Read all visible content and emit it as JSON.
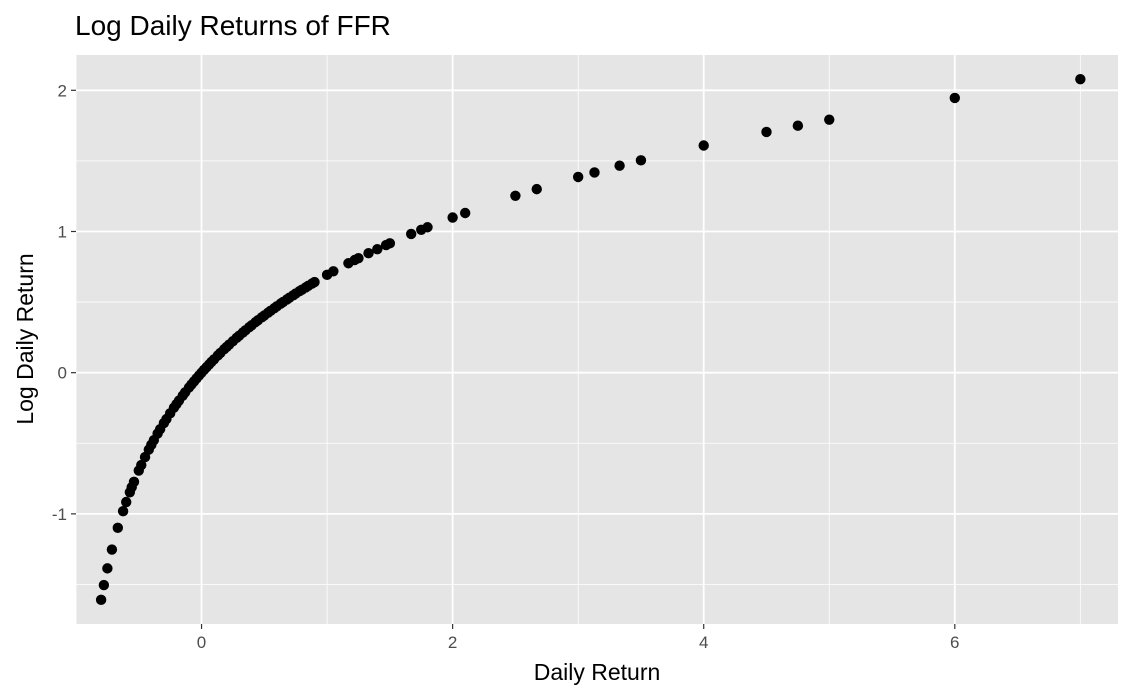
{
  "chart_data": {
    "type": "scatter",
    "title": "Log Daily Returns of FFR",
    "xlabel": "Daily Return",
    "ylabel": "Log Daily Return",
    "xlim": [
      -1.0,
      7.3
    ],
    "ylim": [
      -1.78,
      2.25
    ],
    "grid": true,
    "x_major_ticks": [
      0,
      2,
      4,
      6
    ],
    "x_minor_ticks": [
      -1,
      1,
      3,
      5,
      7
    ],
    "y_major_ticks": [
      -1,
      0,
      1,
      2
    ],
    "y_minor_ticks": [
      -1.5,
      -0.5,
      0.5,
      1.5
    ],
    "x_tick_labels": [
      "0",
      "2",
      "4",
      "6"
    ],
    "y_tick_labels": [
      "-1",
      "0",
      "1",
      "2"
    ],
    "series": [
      {
        "name": "log returns",
        "x": [
          -0.8,
          -0.778,
          -0.75,
          -0.714,
          -0.667,
          -0.625,
          -0.6,
          -0.571,
          -0.556,
          -0.538,
          -0.5,
          -0.48,
          -0.45,
          -0.42,
          -0.4,
          -0.38,
          -0.35,
          -0.33,
          -0.3,
          -0.28,
          -0.25,
          -0.22,
          -0.2,
          -0.18,
          -0.15,
          -0.13,
          -0.1,
          -0.08,
          -0.06,
          -0.04,
          -0.02,
          0,
          0.02,
          0.04,
          0.06,
          0.08,
          0.1,
          0.13,
          0.15,
          0.18,
          0.2,
          0.22,
          0.25,
          0.28,
          0.3,
          0.33,
          0.35,
          0.38,
          0.4,
          0.43,
          0.45,
          0.48,
          0.5,
          0.53,
          0.55,
          0.58,
          0.6,
          0.63,
          0.65,
          0.68,
          0.7,
          0.73,
          0.75,
          0.78,
          0.8,
          0.83,
          0.85,
          0.88,
          0.9,
          1.0,
          1.05,
          1.17,
          1.22,
          1.25,
          1.33,
          1.4,
          1.47,
          1.5,
          1.67,
          1.75,
          1.8,
          2.0,
          2.1,
          2.5,
          2.67,
          3.0,
          3.13,
          3.33,
          3.5,
          4.0,
          4.5,
          4.75,
          5.0,
          6.0,
          7.0
        ],
        "y": [
          -1.609,
          -1.504,
          -1.386,
          -1.253,
          -1.099,
          -0.981,
          -0.916,
          -0.847,
          -0.811,
          -0.773,
          -0.693,
          -0.654,
          -0.598,
          -0.545,
          -0.511,
          -0.478,
          -0.431,
          -0.4,
          -0.357,
          -0.329,
          -0.288,
          -0.248,
          -0.223,
          -0.198,
          -0.163,
          -0.139,
          -0.105,
          -0.083,
          -0.062,
          -0.041,
          -0.02,
          0,
          0.02,
          0.039,
          0.058,
          0.077,
          0.095,
          0.122,
          0.14,
          0.166,
          0.182,
          0.199,
          0.223,
          0.247,
          0.262,
          0.285,
          0.3,
          0.322,
          0.336,
          0.358,
          0.372,
          0.392,
          0.405,
          0.425,
          0.438,
          0.457,
          0.47,
          0.489,
          0.501,
          0.519,
          0.531,
          0.548,
          0.56,
          0.577,
          0.588,
          0.604,
          0.615,
          0.631,
          0.642,
          0.693,
          0.718,
          0.775,
          0.798,
          0.811,
          0.846,
          0.875,
          0.904,
          0.916,
          0.983,
          1.012,
          1.03,
          1.099,
          1.131,
          1.253,
          1.3,
          1.386,
          1.418,
          1.466,
          1.504,
          1.609,
          1.705,
          1.749,
          1.792,
          1.946,
          2.079
        ]
      }
    ],
    "point_color": "#000000",
    "panel_background": "#e5e5e5",
    "grid_color": "#ffffff"
  }
}
